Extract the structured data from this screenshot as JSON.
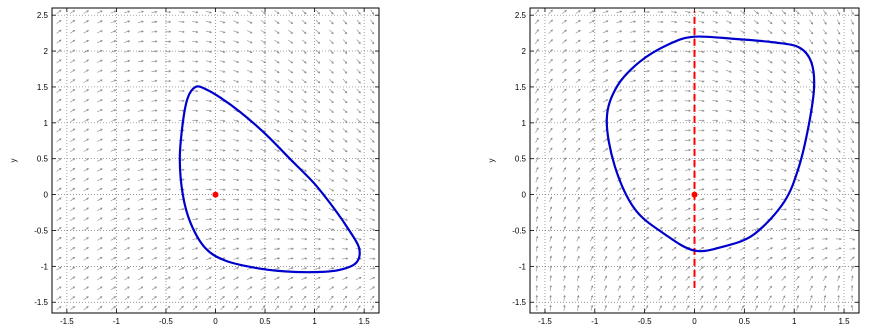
{
  "chart_data": [
    {
      "type": "phase-portrait",
      "ylabel": "y",
      "xlim": [
        -1.65,
        1.65
      ],
      "ylim": [
        -1.65,
        2.6
      ],
      "xticks": [
        -1.5,
        -1,
        -0.5,
        0,
        0.5,
        1,
        1.5
      ],
      "xtick_labels": [
        "-1.5",
        "-1",
        "-0.5",
        "0",
        "0.5",
        "1",
        "1.5"
      ],
      "yticks": [
        -1.5,
        -1,
        -0.5,
        0,
        0.5,
        1,
        1.5,
        2,
        2.5
      ],
      "ytick_labels": [
        "-1.5",
        "-1",
        "-0.5",
        "0",
        "0.5",
        "1",
        "1.5",
        "2",
        "2.5"
      ],
      "grid": true,
      "grid_style": "dotted",
      "vector_field": {
        "field": "left",
        "color": "#8a8a8a",
        "grid_step": 0.1375
      },
      "equilibrium": {
        "x": 0,
        "y": 0,
        "color": "#ff0000"
      },
      "orbit": {
        "color": "#0000cc",
        "points": [
          [
            -0.2,
            1.5
          ],
          [
            -0.1,
            1.47
          ],
          [
            0.05,
            1.35
          ],
          [
            0.25,
            1.15
          ],
          [
            0.5,
            0.85
          ],
          [
            0.75,
            0.5
          ],
          [
            1.0,
            0.15
          ],
          [
            1.2,
            -0.2
          ],
          [
            1.35,
            -0.5
          ],
          [
            1.45,
            -0.75
          ],
          [
            1.42,
            -0.95
          ],
          [
            1.25,
            -1.05
          ],
          [
            1.0,
            -1.08
          ],
          [
            0.7,
            -1.07
          ],
          [
            0.4,
            -1.02
          ],
          [
            0.1,
            -0.92
          ],
          [
            -0.1,
            -0.75
          ],
          [
            -0.25,
            -0.4
          ],
          [
            -0.33,
            0.0
          ],
          [
            -0.36,
            0.5
          ],
          [
            -0.33,
            1.0
          ],
          [
            -0.28,
            1.35
          ],
          [
            -0.2,
            1.5
          ]
        ]
      }
    },
    {
      "type": "phase-portrait",
      "ylabel": "y",
      "xlim": [
        -1.65,
        1.65
      ],
      "ylim": [
        -1.65,
        2.6
      ],
      "xticks": [
        -1.5,
        -1,
        -0.5,
        0,
        0.5,
        1,
        1.5
      ],
      "xtick_labels": [
        "-1.5",
        "-1",
        "-0.5",
        "0",
        "0.5",
        "1",
        "1.5"
      ],
      "yticks": [
        -1.5,
        -1,
        -0.5,
        0,
        0.5,
        1,
        1.5,
        2,
        2.5
      ],
      "ytick_labels": [
        "-1.5",
        "-1",
        "-0.5",
        "0",
        "0.5",
        "1",
        "1.5",
        "2",
        "2.5"
      ],
      "grid": true,
      "grid_style": "dotted",
      "vector_field": {
        "field": "right",
        "color": "#8a8a8a",
        "grid_step": 0.1375
      },
      "equilibrium": {
        "x": 0,
        "y": 0,
        "color": "#ff0000"
      },
      "section": {
        "x": 0,
        "y_range": [
          -1.3,
          2.55
        ],
        "color": "#ff0000",
        "style": "dashed"
      },
      "orbit": {
        "color": "#0000cc",
        "points": [
          [
            0.0,
            2.2
          ],
          [
            0.4,
            2.17
          ],
          [
            0.8,
            2.12
          ],
          [
            1.05,
            2.05
          ],
          [
            1.17,
            1.85
          ],
          [
            1.2,
            1.5
          ],
          [
            1.15,
            1.0
          ],
          [
            1.05,
            0.4
          ],
          [
            0.9,
            -0.1
          ],
          [
            0.6,
            -0.55
          ],
          [
            0.3,
            -0.72
          ],
          [
            0.0,
            -0.78
          ],
          [
            -0.3,
            -0.55
          ],
          [
            -0.6,
            -0.2
          ],
          [
            -0.8,
            0.4
          ],
          [
            -0.88,
            1.05
          ],
          [
            -0.78,
            1.5
          ],
          [
            -0.55,
            1.85
          ],
          [
            -0.25,
            2.1
          ],
          [
            0.0,
            2.2
          ]
        ]
      }
    }
  ]
}
